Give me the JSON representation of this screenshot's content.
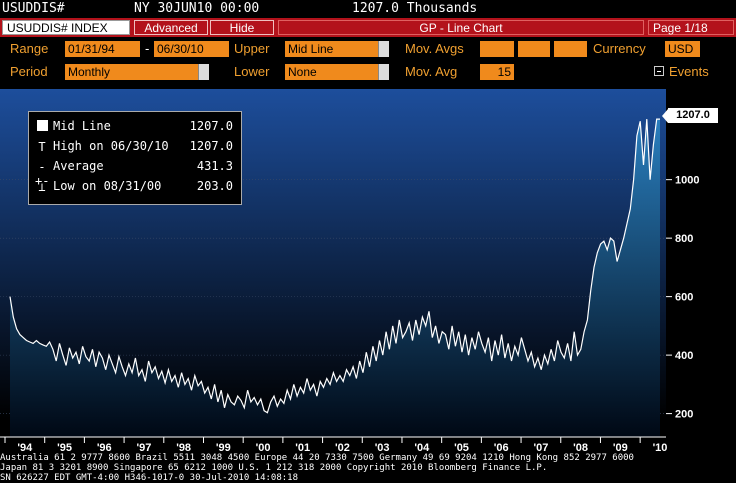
{
  "header": {
    "ticker": "USUDDIS#",
    "location_time": "NY 30JUN10 00:00",
    "value": "1207.0 Thousands"
  },
  "tabs": {
    "ticker_field": "USUDDIS# INDEX",
    "advanced": "Advanced",
    "hide": "Hide",
    "chart_title": "GP - Line Chart",
    "page": "Page 1/18"
  },
  "controls": {
    "range_label": "Range",
    "range_start": "01/31/94",
    "range_sep": "-",
    "range_end": "06/30/10",
    "upper_label": "Upper",
    "upper_value": "Mid Line",
    "mov_avgs_label": "Mov. Avgs",
    "currency_label": "Currency",
    "currency_value": "USD",
    "period_label": "Period",
    "period_value": "Monthly",
    "lower_label": "Lower",
    "lower_value": "None",
    "mov_avg_label": "Mov. Avg",
    "mov_avg_value": "15",
    "events_label": "Events"
  },
  "legend": {
    "rows": [
      {
        "label": "Mid Line",
        "value": "1207.0"
      },
      {
        "label": "High on 06/30/10",
        "value": "1207.0"
      },
      {
        "label": "Average",
        "value": "431.3"
      },
      {
        "label": "Low on 08/31/00",
        "value": "203.0"
      }
    ]
  },
  "last_value_tag": "1207.0",
  "footer": {
    "line1": "Australia 61 2 9777 8600 Brazil 5511 3048 4500 Europe 44 20 7330 7500 Germany 49 69 9204 1210 Hong Kong 852 2977 6000",
    "line2": "Japan 81 3 3201 8900        Singapore 65 6212 1000     U.S. 1 212 318 2000          Copyright 2010 Bloomberg Finance L.P.",
    "line3": "SN 626227 EDT GMT-4:00 H346-1017-0 30-Jul-2010 14:08:18"
  },
  "colors": {
    "accent": "#f08a1c",
    "tab_bar": "#b3121b",
    "label": "#f0a030",
    "area_top": "#2a6fb3"
  },
  "chart_data": {
    "type": "area",
    "title": "",
    "xlabel": "",
    "ylabel": "",
    "unit": "Thousands",
    "ylim": [
      120,
      1310
    ],
    "y_ticks": [
      200,
      400,
      600,
      800,
      1000
    ],
    "x_tick_labels": [
      "'94",
      "'95",
      "'96",
      "'97",
      "'98",
      "'99",
      "'00",
      "'01",
      "'02",
      "'03",
      "'04",
      "'05",
      "'06",
      "'07",
      "'08",
      "'09",
      "'10"
    ],
    "x_start_year": 1994,
    "series": [
      {
        "name": "Mid Line",
        "values": [
          600,
          530,
          490,
          470,
          460,
          450,
          445,
          440,
          450,
          440,
          435,
          430,
          445,
          420,
          380,
          440,
          400,
          365,
          425,
          390,
          410,
          370,
          430,
          395,
          380,
          420,
          360,
          410,
          390,
          350,
          400,
          370,
          340,
          395,
          360,
          330,
          370,
          340,
          390,
          330,
          350,
          310,
          380,
          340,
          360,
          320,
          345,
          305,
          350,
          310,
          330,
          290,
          340,
          300,
          320,
          280,
          330,
          295,
          310,
          270,
          290,
          250,
          300,
          240,
          280,
          220,
          265,
          240,
          230,
          260,
          245,
          220,
          280,
          240,
          255,
          230,
          250,
          210,
          203,
          240,
          260,
          225,
          250,
          235,
          280,
          250,
          300,
          260,
          290,
          270,
          320,
          280,
          300,
          260,
          310,
          290,
          320,
          300,
          340,
          310,
          330,
          310,
          350,
          330,
          360,
          320,
          380,
          340,
          410,
          360,
          430,
          380,
          450,
          400,
          480,
          420,
          500,
          440,
          520,
          460,
          480,
          510,
          450,
          520,
          470,
          530,
          500,
          550,
          460,
          500,
          440,
          480,
          470,
          420,
          500,
          430,
          480,
          410,
          470,
          400,
          460,
          420,
          480,
          440,
          410,
          460,
          380,
          450,
          400,
          470,
          390,
          440,
          380,
          430,
          400,
          460,
          420,
          380,
          410,
          360,
          390,
          350,
          400,
          370,
          420,
          380,
          450,
          410,
          390,
          440,
          380,
          480,
          400,
          420,
          480,
          520,
          620,
          700,
          750,
          780,
          790,
          760,
          800,
          790,
          720,
          760,
          800,
          850,
          900,
          1000,
          1150,
          1200,
          1050,
          1207,
          1000,
          1120,
          1207,
          1207
        ]
      }
    ],
    "high": {
      "date": "06/30/10",
      "value": 1207.0
    },
    "low": {
      "date": "08/31/00",
      "value": 203.0
    },
    "average": 431.3,
    "last": 1207.0
  }
}
